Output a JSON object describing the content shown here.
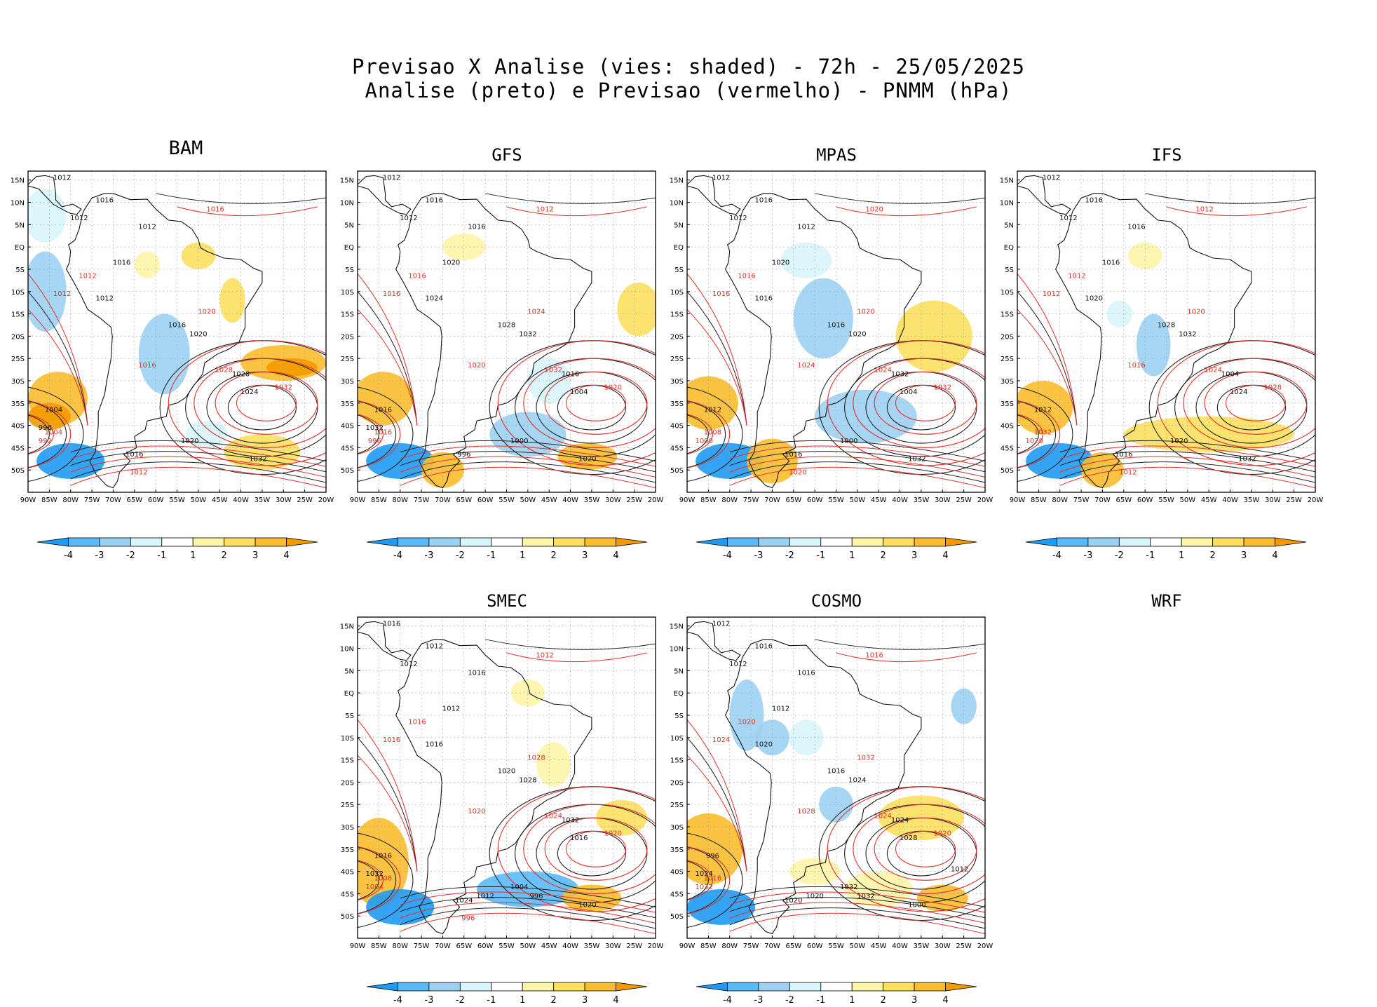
{
  "header": {
    "line1": "Previsao X Analise (vies: shaded) - 72h - 25/05/2025",
    "line2": "Analise (preto) e Previsao (vermelho) - PNMM (hPa)"
  },
  "axes": {
    "lat_labels": [
      "15N",
      "10N",
      "5N",
      "EQ",
      "5S",
      "10S",
      "15S",
      "20S",
      "25S",
      "30S",
      "35S",
      "40S",
      "45S",
      "50S"
    ],
    "lon_labels": [
      "90W",
      "85W",
      "80W",
      "75W",
      "70W",
      "65W",
      "60W",
      "55W",
      "50W",
      "45W",
      "40W",
      "35W",
      "30W",
      "25W",
      "20W"
    ]
  },
  "colorbar": {
    "labels": [
      "-4",
      "-3",
      "-2",
      "-1",
      "1",
      "2",
      "3",
      "4"
    ],
    "colors": [
      "#1e9bf5",
      "#5ab9f7",
      "#9cd1f3",
      "#d8f5fb",
      "#ffffff",
      "#fdf5a8",
      "#fcdf5e",
      "#fbbc2e",
      "#f49a00"
    ]
  },
  "panels": [
    {
      "model": "BAM",
      "labels": {
        "black": [
          "1012",
          "1016",
          "1012",
          "1012",
          "1016",
          "1012",
          "1016",
          "1020",
          "1028",
          "1024",
          "1020",
          "1016",
          "1032",
          "1004",
          "996"
        ],
        "red": [
          "1016",
          "1012",
          "1012",
          "1016",
          "1020",
          "1028",
          "1032",
          "1004",
          "992",
          "1012"
        ]
      }
    },
    {
      "model": "GFS",
      "labels": {
        "black": [
          "1012",
          "1016",
          "1012",
          "1016",
          "1020",
          "1024",
          "1028",
          "1032",
          "1016",
          "1004",
          "1000",
          "996",
          "1020",
          "1016",
          "1032"
        ],
        "red": [
          "1012",
          "1016",
          "1016",
          "1020",
          "1024",
          "1032",
          "1020",
          "1016",
          "996"
        ]
      }
    },
    {
      "model": "MPAS",
      "labels": {
        "black": [
          "1012",
          "1016",
          "1012",
          "1012",
          "1020",
          "1016",
          "1016",
          "1020",
          "1032",
          "1004",
          "1000",
          "1016",
          "1032",
          "1012"
        ],
        "red": [
          "1020",
          "1016",
          "1016",
          "1024",
          "1020",
          "1024",
          "1032",
          "1008",
          "1000",
          "1020"
        ]
      }
    },
    {
      "model": "IFS",
      "labels": {
        "black": [
          "1012",
          "1016",
          "1012",
          "1016",
          "1016",
          "1020",
          "1028",
          "1032",
          "1004",
          "1024",
          "1020",
          "1016",
          "1032",
          "1012"
        ],
        "red": [
          "1012",
          "1012",
          "1012",
          "1016",
          "1020",
          "1024",
          "1028",
          "1032",
          "1020",
          "1012"
        ]
      }
    },
    {
      "model": "SMEC",
      "labels": {
        "black": [
          "1016",
          "1012",
          "1012",
          "1016",
          "1012",
          "1016",
          "1020",
          "1028",
          "1032",
          "1016",
          "1004",
          "1024",
          "1020",
          "1016",
          "1032",
          "1012",
          "996"
        ],
        "red": [
          "1012",
          "1016",
          "1016",
          "1020",
          "1028",
          "1024",
          "1020",
          "1008",
          "1004",
          "996"
        ]
      }
    },
    {
      "model": "COSMO",
      "labels": {
        "black": [
          "1012",
          "1016",
          "1012",
          "1016",
          "1012",
          "1020",
          "1016",
          "1024",
          "1024",
          "1028",
          "1032",
          "1020",
          "1000",
          "996",
          "1024",
          "1020",
          "1032",
          "1012"
        ],
        "red": [
          "1016",
          "1020",
          "1024",
          "1028",
          "1032",
          "1024",
          "1020",
          "1016",
          "1032"
        ]
      }
    },
    {
      "model": "WRF",
      "labels": {
        "black": [],
        "red": []
      }
    }
  ]
}
